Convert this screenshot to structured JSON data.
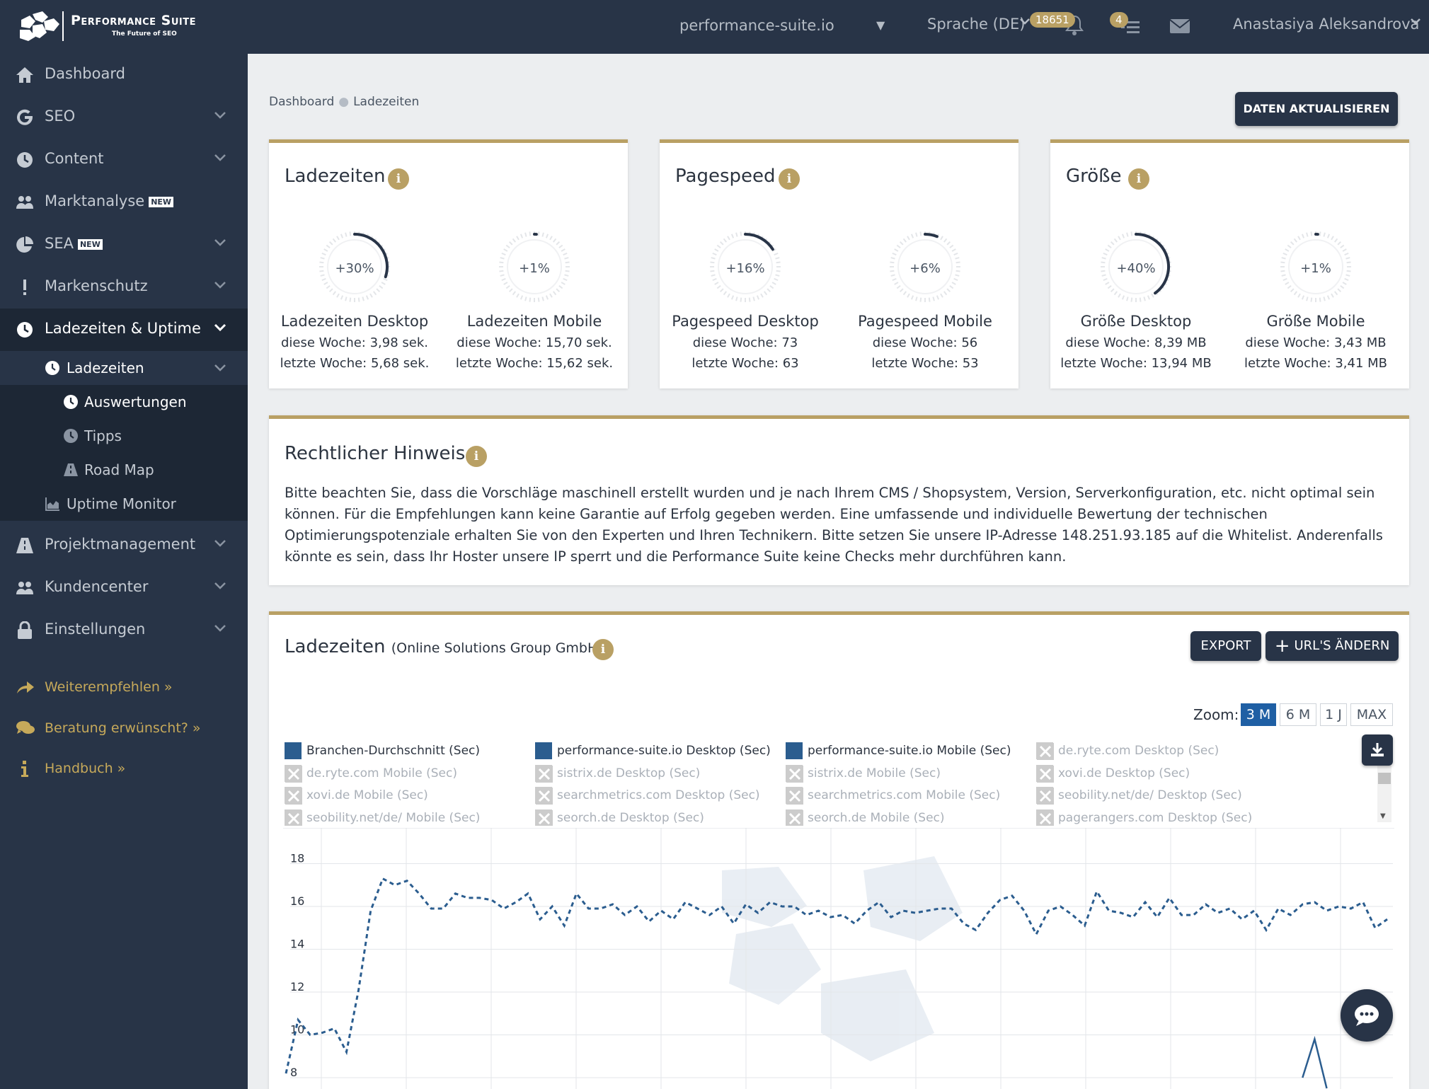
{
  "topbar": {
    "brand": "Performance Suite",
    "brand_sub": "The Future of SEO",
    "domain": "performance-suite.io",
    "language": "Sprache (DE)",
    "notifications_count": "18651",
    "tasks_count": "4",
    "user": "Anastasiya Aleksandrova"
  },
  "sidebar": {
    "items": [
      {
        "label": "Dashboard",
        "icon": "home-icon"
      },
      {
        "label": "SEO",
        "icon": "google-icon"
      },
      {
        "label": "Content",
        "icon": "clock-icon"
      },
      {
        "label": "Marktanalyse",
        "icon": "users-icon",
        "tag": "NEW"
      },
      {
        "label": "SEA",
        "icon": "pie-chart-icon",
        "tag": "NEW"
      },
      {
        "label": "Markenschutz",
        "icon": "exclamation-icon"
      },
      {
        "label": "Ladezeiten & Uptime",
        "icon": "clock-icon"
      },
      {
        "label": "Projektmanagement",
        "icon": "road-icon"
      },
      {
        "label": "Kundencenter",
        "icon": "users-icon"
      },
      {
        "label": "Einstellungen",
        "icon": "lock-icon"
      }
    ],
    "sub": {
      "ladezeiten": "Ladezeiten",
      "auswertungen": "Auswertungen",
      "tipps": "Tipps",
      "roadmap": "Road Map",
      "uptime": "Uptime Monitor"
    },
    "footer": [
      {
        "label": "Weiterempfehlen »",
        "icon": "share-icon"
      },
      {
        "label": "Beratung erwünscht? »",
        "icon": "chat-icon"
      },
      {
        "label": "Handbuch »",
        "icon": "info-icon"
      }
    ]
  },
  "breadcrumb": {
    "root": "Dashboard",
    "current": "Ladezeiten"
  },
  "refresh_button": "DATEN AKTUALISIEREN",
  "cards": [
    {
      "title": "Ladezeiten",
      "metrics": [
        {
          "gauge": "+30%",
          "title": "Ladezeiten Desktop",
          "this_week": "diese Woche: 3,98 sek.",
          "last_week": "letzte Woche: 5,68 sek.",
          "level": 0.3
        },
        {
          "gauge": "+1%",
          "title": "Ladezeiten Mobile",
          "this_week": "diese Woche: 15,70 sek.",
          "last_week": "letzte Woche: 15,62 sek.",
          "level": 0.01
        }
      ]
    },
    {
      "title": "Pagespeed",
      "metrics": [
        {
          "gauge": "+16%",
          "title": "Pagespeed Desktop",
          "this_week": "diese Woche: 73",
          "last_week": "letzte Woche: 63",
          "level": 0.16
        },
        {
          "gauge": "+6%",
          "title": "Pagespeed Mobile",
          "this_week": "diese Woche: 56",
          "last_week": "letzte Woche: 53",
          "level": 0.06
        }
      ]
    },
    {
      "title": "Größe",
      "metrics": [
        {
          "gauge": "+40%",
          "title": "Größe Desktop",
          "this_week": "diese Woche: 8,39 MB",
          "last_week": "letzte Woche: 13,94 MB",
          "level": 0.4
        },
        {
          "gauge": "+1%",
          "title": "Größe Mobile",
          "this_week": "diese Woche: 3,43 MB",
          "last_week": "letzte Woche: 3,41 MB",
          "level": 0.01
        }
      ]
    }
  ],
  "legal": {
    "title": "Rechtlicher Hinweis",
    "text": "Bitte beachten Sie, dass die Vorschläge maschinell erstellt wurden und je nach Ihrem CMS / Shopsystem, Version, Serverkonfiguration, etc. nicht optimal sein können. Für die Empfehlungen kann keine Garantie auf Erfolg gegeben werden. Eine umfassende und individuelle Bewertung der technischen Optimierungspotenziale erhalten Sie von den Experten und Ihren Technikern. Bitte setzen Sie unsere IP-Adresse 148.251.93.185 auf die Whitelist. Anderenfalls könnte es sein, dass Ihr Hoster unsere IP sperrt und die Performance Suite keine Checks mehr durchführen kann."
  },
  "chart_panel": {
    "title": "Ladezeiten",
    "subtitle": "(Online Solutions Group GmbH)",
    "export": "EXPORT",
    "change_urls": "URL'S ÄNDERN",
    "zoom_label": "Zoom:",
    "zoom_options": [
      "3 M",
      "6 M",
      "1 J",
      "MAX"
    ],
    "zoom_selected": "3 M",
    "legend": [
      {
        "name": "Branchen-Durchschnitt (Sec)",
        "active": true
      },
      {
        "name": "performance-suite.io Desktop (Sec)",
        "active": true
      },
      {
        "name": "performance-suite.io Mobile (Sec)",
        "active": true
      },
      {
        "name": "de.ryte.com Desktop (Sec)",
        "active": false
      },
      {
        "name": "de.ryte.com Mobile (Sec)",
        "active": false
      },
      {
        "name": "sistrix.de Desktop (Sec)",
        "active": false
      },
      {
        "name": "sistrix.de Mobile (Sec)",
        "active": false
      },
      {
        "name": "xovi.de Desktop (Sec)",
        "active": false
      },
      {
        "name": "xovi.de Mobile (Sec)",
        "active": false
      },
      {
        "name": "searchmetrics.com Desktop (Sec)",
        "active": false
      },
      {
        "name": "searchmetrics.com Mobile (Sec)",
        "active": false
      },
      {
        "name": "seobility.net/de/ Desktop (Sec)",
        "active": false
      },
      {
        "name": "seobility.net/de/ Mobile (Sec)",
        "active": false
      },
      {
        "name": "seorch.de Desktop (Sec)",
        "active": false
      },
      {
        "name": "seorch.de Mobile (Sec)",
        "active": false
      },
      {
        "name": "pagerangers.com Desktop (Sec)",
        "active": false
      }
    ]
  },
  "chart_data": {
    "type": "line",
    "yticks": [
      8,
      10,
      12,
      14,
      16,
      18
    ],
    "ylim": [
      8,
      18.5
    ],
    "series": [
      {
        "name": "Branchen-Durchschnitt (Sec)",
        "style": "dashed",
        "color": "#2b5d8f",
        "values": [
          8.2,
          10.7,
          10,
          10.1,
          10.3,
          9.2,
          12.1,
          15.8,
          17.3,
          17,
          17.2,
          16.6,
          15.9,
          15.9,
          16.6,
          16.4,
          16.4,
          16.3,
          15.9,
          16.2,
          16.6,
          15.4,
          16,
          15.1,
          16.6,
          15.9,
          15.9,
          16.1,
          15.6,
          16,
          15.3,
          15.8,
          15.4,
          16.2,
          15.9,
          15.6,
          16,
          15.2,
          16.1,
          15.7,
          16.2,
          16,
          16,
          15.6,
          15.8,
          15.5,
          15.6,
          15.2,
          15.8,
          16.2,
          15.5,
          15.8,
          15.7,
          15.8,
          15.9,
          15.9,
          15.2,
          14.9,
          15.7,
          16.3,
          16.5,
          15.8,
          14.7,
          15.8,
          16,
          15.6,
          15.1,
          16.7,
          15.8,
          15.7,
          15.5,
          16.2,
          15.5,
          16.4,
          15.6,
          15.6,
          16.1,
          15.7,
          15.9,
          15.4,
          15.8,
          14.9,
          15.9,
          15.6,
          16.1,
          16.2,
          15.8,
          16,
          15.9,
          16.2,
          15,
          15.4
        ]
      },
      {
        "name": "performance-suite.io Desktop (Sec)",
        "style": "solid",
        "color": "#2b5d8f",
        "values": [
          null,
          null,
          null,
          null,
          null,
          null,
          null,
          null,
          null,
          null,
          null,
          null,
          null,
          null,
          null,
          null,
          null,
          null,
          null,
          null,
          null,
          null,
          null,
          null,
          null,
          null,
          null,
          null,
          null,
          null,
          null,
          null,
          null,
          null,
          null,
          null,
          null,
          null,
          null,
          null,
          null,
          null,
          null,
          null,
          null,
          null,
          null,
          null,
          null,
          null,
          null,
          null,
          null,
          null,
          null,
          null,
          null,
          null,
          null,
          null,
          null,
          null,
          null,
          null,
          null,
          null,
          null,
          null,
          null,
          null,
          null,
          null,
          null,
          null,
          null,
          null,
          null,
          null,
          null,
          null,
          null,
          null,
          null,
          null,
          8,
          9.8,
          7.5,
          null,
          null,
          null,
          null,
          null
        ]
      }
    ]
  }
}
